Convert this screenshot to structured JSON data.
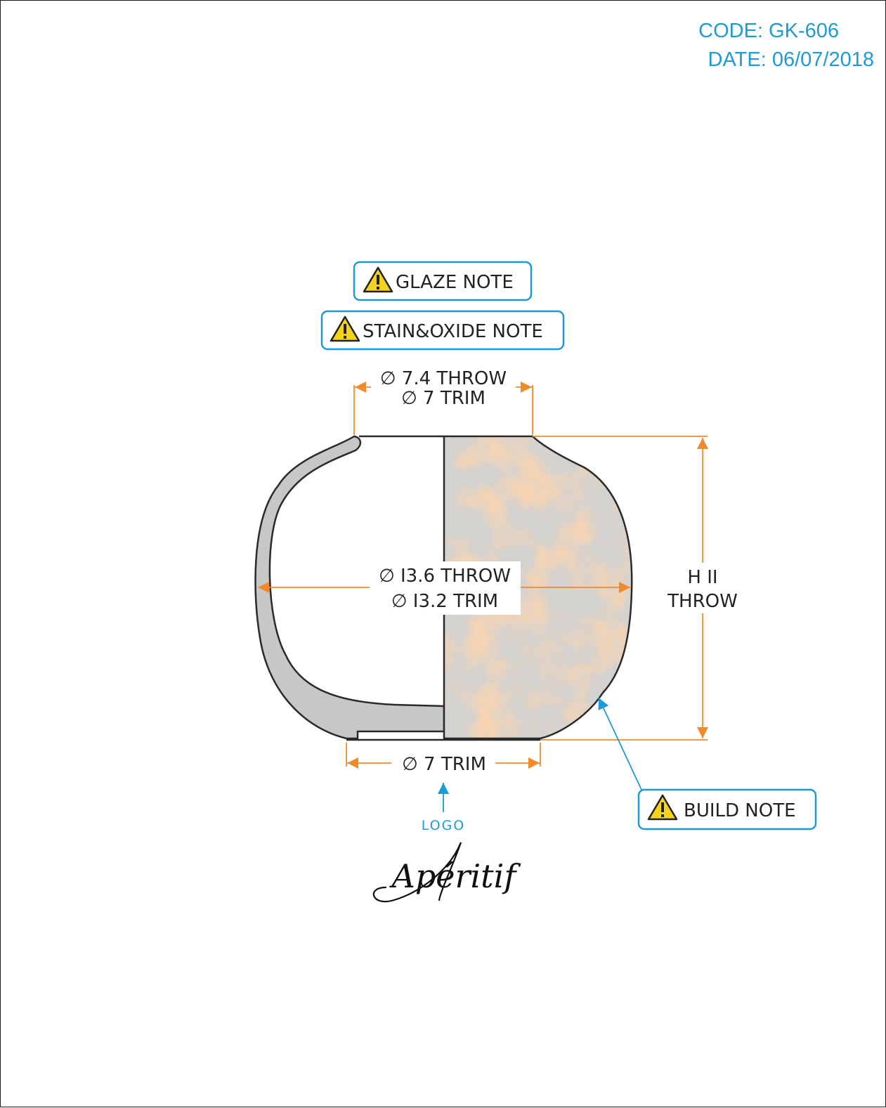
{
  "meta": {
    "code": "CODE: GK-606",
    "date": "DATE: 06/07/2018"
  },
  "notes": {
    "glaze": "GLAZE NOTE",
    "stain_oxide": "STAIN&OXIDE NOTE",
    "build": "BUILD NOTE",
    "icon": "warning-icon"
  },
  "dimensions": {
    "top_throw": "∅ 7.4 THROW",
    "top_trim": "∅ 7 TRIM",
    "mid_throw": "∅ I3.6 THROW",
    "mid_trim": "∅ I3.2 TRIM",
    "height_value": "H II",
    "height_type": "THROW",
    "bottom_trim": "∅ 7 TRIM"
  },
  "logo": {
    "label": "LOGO",
    "brand": "Apéritif"
  },
  "colors": {
    "accent_blue": "#1e9ad6",
    "dimension_orange": "#f08a2c",
    "glaze_orange": "#f6ae74",
    "glaze_grey": "#d4d2cf",
    "section_fill": "#c7c7c7",
    "warning_yellow": "#f5d31a"
  }
}
